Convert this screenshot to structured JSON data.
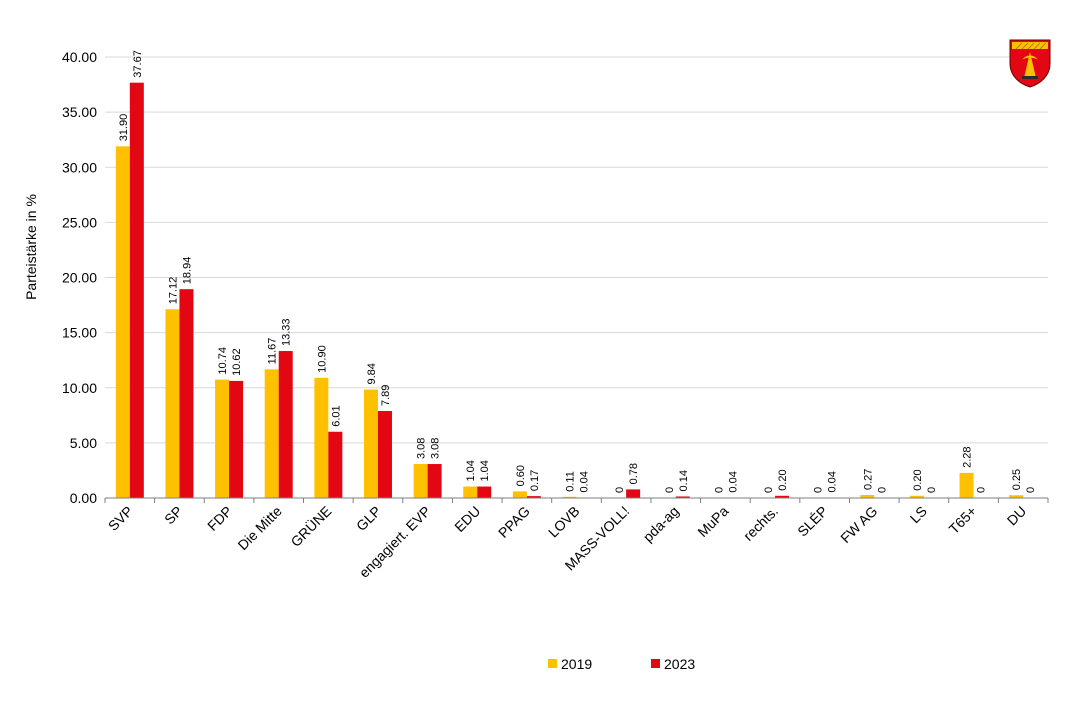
{
  "chart_data": {
    "type": "bar",
    "title": "",
    "xlabel": "",
    "ylabel": "Parteistärke in %",
    "ylim": [
      0,
      40
    ],
    "ytick_step": 5,
    "ytick_labels": [
      "0.00",
      "5.00",
      "10.00",
      "15.00",
      "20.00",
      "25.00",
      "30.00",
      "35.00",
      "40.00"
    ],
    "grid": true,
    "legend_position": "bottom-center",
    "categories": [
      "SVP",
      "SP",
      "FDP",
      "Die Mitte",
      "GRÜNE",
      "GLP",
      "engagiert. EVP",
      "EDU",
      "PPAG",
      "LOVB",
      "MASS-VOLL!",
      "pda-ag",
      "MuPa",
      "rechts.",
      "SLÉP",
      "FW AG",
      "LS",
      "T65+",
      "DU"
    ],
    "series": [
      {
        "name": "2019",
        "color": "#FFC000",
        "values": [
          31.9,
          17.12,
          10.74,
          11.67,
          10.9,
          9.84,
          3.08,
          1.04,
          0.6,
          0.11,
          0,
          0,
          0,
          0,
          0,
          0.27,
          0.2,
          2.28,
          0.25
        ],
        "labels": [
          "31.90",
          "17.12",
          "10.74",
          "11.67",
          "10.90",
          "9.84",
          "3.08",
          "1.04",
          "0.60",
          "0.11",
          "0",
          "0",
          "0",
          "0",
          "0",
          "0.27",
          "0.20",
          "2.28",
          "0.25"
        ]
      },
      {
        "name": "2023",
        "color": "#E30613",
        "values": [
          37.67,
          18.94,
          10.62,
          13.33,
          6.01,
          7.89,
          3.08,
          1.04,
          0.17,
          0.04,
          0.78,
          0.14,
          0.04,
          0.2,
          0.04,
          0,
          0,
          0,
          0
        ],
        "labels": [
          "37.67",
          "18.94",
          "10.62",
          "13.33",
          "6.01",
          "7.89",
          "3.08",
          "1.04",
          "0.17",
          "0.04",
          "0.78",
          "0.14",
          "0.04",
          "0.20",
          "0.04",
          "0",
          "0",
          "0",
          "0"
        ]
      }
    ]
  },
  "logo": {
    "icon": "coat-of-arms-icon"
  }
}
